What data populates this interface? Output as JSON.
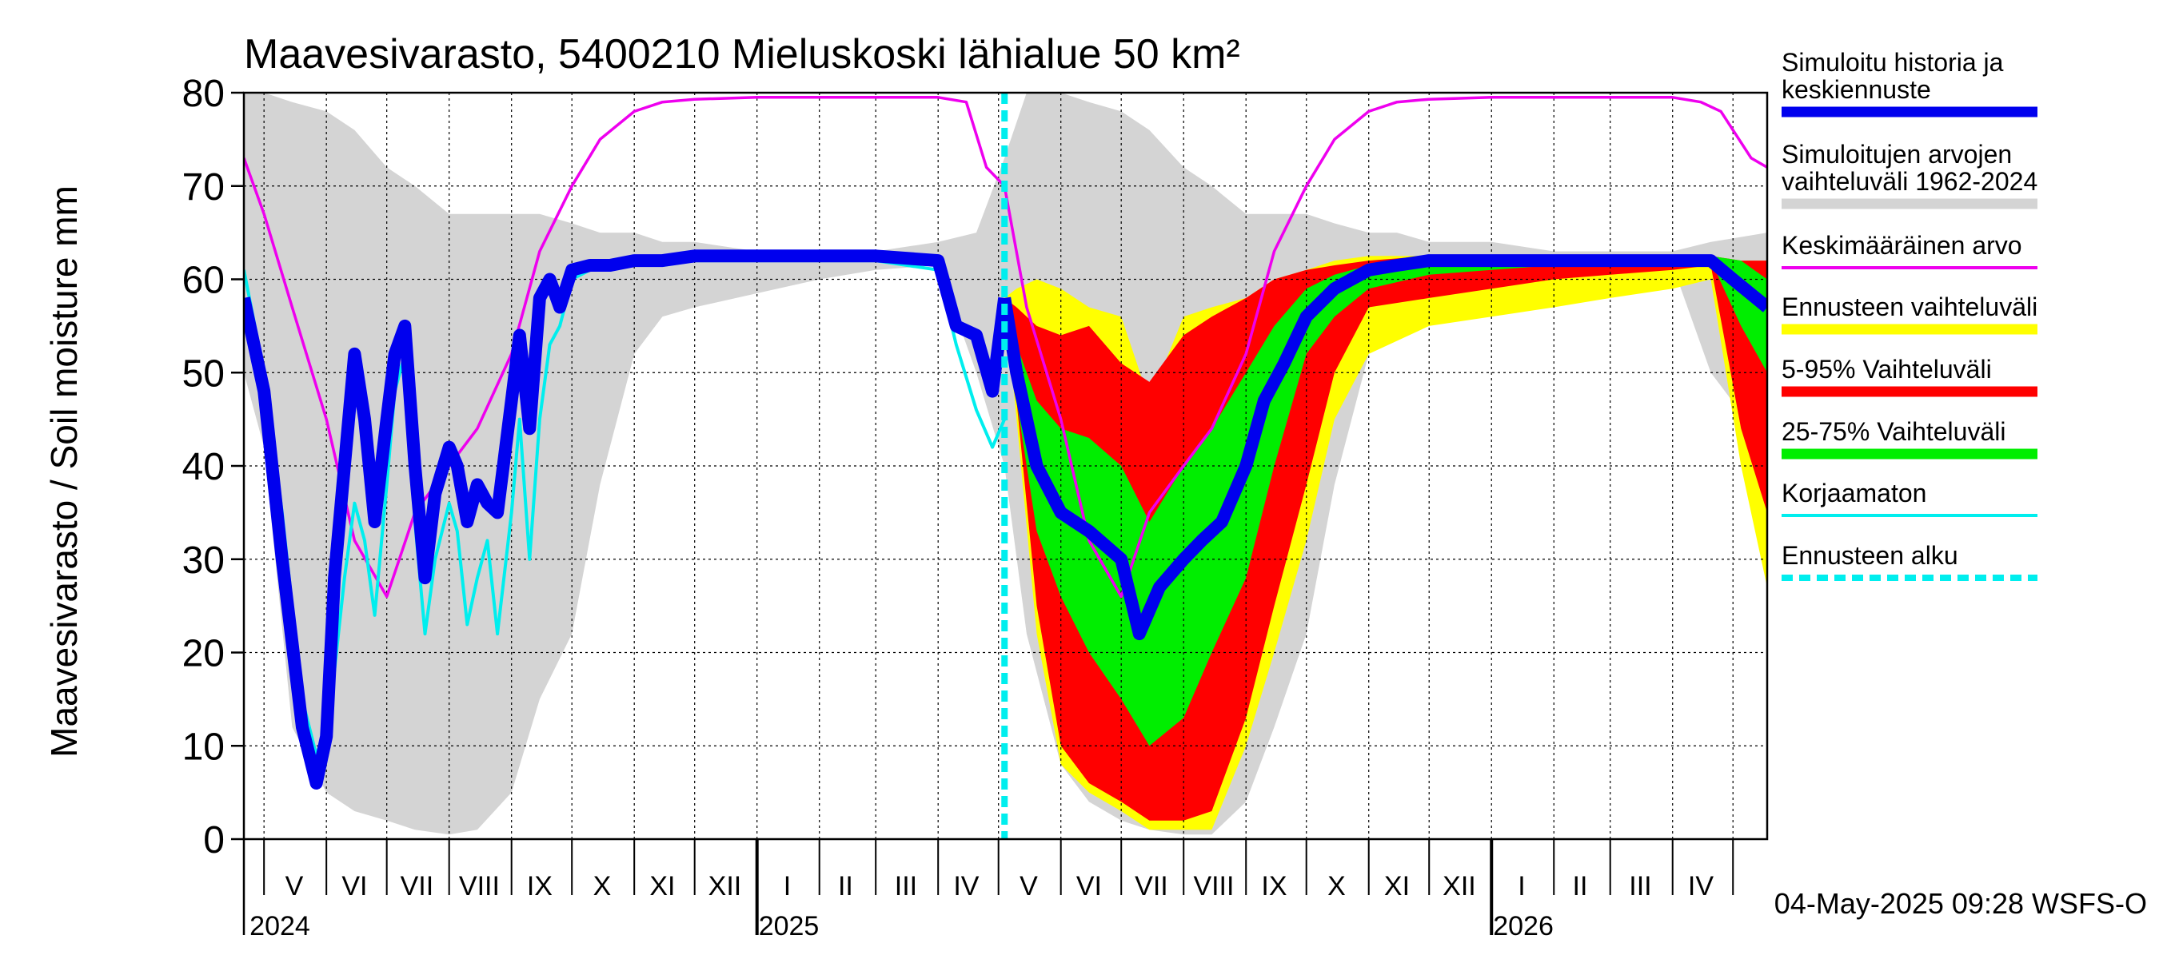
{
  "chart_data": {
    "type": "area",
    "title": "Maavesivarasto, 5400210 Mieluskoski lähialue 50 km²",
    "ylabel": "Maavesivarasto / Soil moisture   mm",
    "xlabel": "",
    "ylim": [
      0,
      80
    ],
    "y_ticks": [
      0,
      10,
      20,
      30,
      40,
      50,
      60,
      70,
      80
    ],
    "x_range": [
      "2024-04-21",
      "2026-05-18"
    ],
    "grid": true,
    "legend_position": "right",
    "month_labels": [
      {
        "label": "V",
        "date": "2024-05-16"
      },
      {
        "label": "VI",
        "date": "2024-06-15"
      },
      {
        "label": "VII",
        "date": "2024-07-16"
      },
      {
        "label": "VIII",
        "date": "2024-08-16"
      },
      {
        "label": "IX",
        "date": "2024-09-15"
      },
      {
        "label": "X",
        "date": "2024-10-16"
      },
      {
        "label": "XI",
        "date": "2024-11-15"
      },
      {
        "label": "XII",
        "date": "2024-12-16"
      },
      {
        "label": "I",
        "date": "2025-01-16"
      },
      {
        "label": "II",
        "date": "2025-02-14"
      },
      {
        "label": "III",
        "date": "2025-03-16"
      },
      {
        "label": "IV",
        "date": "2025-04-15"
      },
      {
        "label": "V",
        "date": "2025-05-16"
      },
      {
        "label": "VI",
        "date": "2025-06-15"
      },
      {
        "label": "VII",
        "date": "2025-07-16"
      },
      {
        "label": "VIII",
        "date": "2025-08-16"
      },
      {
        "label": "IX",
        "date": "2025-09-15"
      },
      {
        "label": "X",
        "date": "2025-10-16"
      },
      {
        "label": "XI",
        "date": "2025-11-15"
      },
      {
        "label": "XII",
        "date": "2025-12-16"
      },
      {
        "label": "I",
        "date": "2026-01-16"
      },
      {
        "label": "II",
        "date": "2026-02-14"
      },
      {
        "label": "III",
        "date": "2026-03-16"
      },
      {
        "label": "IV",
        "date": "2026-04-15"
      }
    ],
    "year_labels": [
      {
        "label": "2024",
        "date": "2024-05-01"
      },
      {
        "label": "2025",
        "date": "2025-01-01"
      },
      {
        "label": "2026",
        "date": "2026-01-01"
      }
    ],
    "forecast_start": "2025-05-04",
    "history_range": {
      "x": [
        "2024-04-21",
        "2024-05-01",
        "2024-05-15",
        "2024-06-01",
        "2024-06-15",
        "2024-07-01",
        "2024-07-15",
        "2024-08-01",
        "2024-08-15",
        "2024-09-01",
        "2024-09-15",
        "2024-10-01",
        "2024-10-15",
        "2024-11-01",
        "2024-11-15",
        "2024-12-01",
        "2025-01-01",
        "2025-02-01",
        "2025-03-01",
        "2025-04-01",
        "2025-04-20",
        "2025-05-04",
        "2025-05-15",
        "2025-06-01",
        "2025-06-15",
        "2025-07-01",
        "2025-07-15",
        "2025-08-01",
        "2025-08-15",
        "2025-09-01",
        "2025-09-15",
        "2025-10-01",
        "2025-10-15",
        "2025-11-01",
        "2025-11-15",
        "2025-12-01",
        "2026-01-01",
        "2026-02-01",
        "2026-03-01",
        "2026-04-01",
        "2026-04-20",
        "2026-05-18"
      ],
      "min": [
        50,
        42,
        12,
        5,
        3,
        2,
        1,
        0.5,
        1,
        5,
        15,
        22,
        38,
        52,
        56,
        57,
        58.5,
        60,
        61,
        61.5,
        50,
        40,
        22,
        8,
        4,
        2,
        1,
        0.5,
        0.5,
        4,
        12,
        22,
        38,
        52,
        56,
        57,
        58.5,
        60,
        61,
        61.5,
        50,
        42
      ],
      "max": [
        80,
        80,
        79,
        78,
        76,
        72,
        70,
        67,
        67,
        67,
        67,
        66,
        65,
        65,
        64,
        64,
        63,
        63,
        63,
        64,
        65,
        73,
        80,
        80,
        79,
        78,
        76,
        72,
        70,
        67,
        67,
        67,
        66,
        65,
        65,
        64,
        64,
        63,
        63,
        63,
        64,
        65
      ]
    },
    "series": [
      {
        "name": "Simuloitu historia ja keskiennuste",
        "role": "history",
        "color": "#0000ee",
        "x": [
          "2024-04-21",
          "2024-05-01",
          "2024-05-10",
          "2024-05-20",
          "2024-05-27",
          "2024-06-01",
          "2024-06-05",
          "2024-06-10",
          "2024-06-15",
          "2024-06-20",
          "2024-06-25",
          "2024-07-01",
          "2024-07-05",
          "2024-07-10",
          "2024-07-15",
          "2024-07-20",
          "2024-07-25",
          "2024-08-01",
          "2024-08-05",
          "2024-08-10",
          "2024-08-15",
          "2024-08-20",
          "2024-08-25",
          "2024-09-01",
          "2024-09-05",
          "2024-09-10",
          "2024-09-15",
          "2024-09-20",
          "2024-09-25",
          "2024-10-01",
          "2024-10-10",
          "2024-10-20",
          "2024-11-01",
          "2024-11-15",
          "2024-12-01",
          "2025-01-01",
          "2025-02-01",
          "2025-03-01",
          "2025-04-01",
          "2025-04-10",
          "2025-04-20",
          "2025-04-28",
          "2025-05-04"
        ],
        "values": [
          58,
          48,
          30,
          12,
          6,
          11,
          28,
          40,
          52,
          45,
          34,
          45,
          52,
          55,
          40,
          28,
          37,
          42,
          40,
          34,
          38,
          36,
          35,
          47,
          54,
          44,
          58,
          60,
          57,
          61,
          61.5,
          61.5,
          62,
          62,
          62.5,
          62.5,
          62.5,
          62.5,
          62,
          55,
          54,
          48,
          58
        ]
      },
      {
        "name": "Simuloitu historia ja keskiennuste",
        "role": "forecast median",
        "color": "#0000ee",
        "x": [
          "2025-05-04",
          "2025-05-10",
          "2025-05-20",
          "2025-06-01",
          "2025-06-15",
          "2025-07-01",
          "2025-07-10",
          "2025-07-20",
          "2025-08-01",
          "2025-08-10",
          "2025-08-20",
          "2025-09-01",
          "2025-09-10",
          "2025-09-20",
          "2025-10-01",
          "2025-10-15",
          "2025-11-01",
          "2025-11-15",
          "2025-12-01",
          "2026-01-01",
          "2026-02-01",
          "2026-03-01",
          "2026-04-01",
          "2026-04-20",
          "2026-05-01",
          "2026-05-18"
        ],
        "values": [
          58,
          50,
          40,
          35,
          33,
          30,
          22,
          27,
          30,
          32,
          34,
          40,
          47,
          51,
          56,
          59,
          61,
          61.5,
          62,
          62,
          62,
          62,
          62,
          62,
          60,
          57
        ]
      },
      {
        "name": "Keskimääräinen arvo",
        "role": "mean",
        "color": "#ee00ee",
        "x": [
          "2024-04-21",
          "2024-05-01",
          "2024-05-15",
          "2024-06-01",
          "2024-06-15",
          "2024-07-01",
          "2024-07-15",
          "2024-08-01",
          "2024-08-15",
          "2024-09-01",
          "2024-09-15",
          "2024-10-01",
          "2024-10-15",
          "2024-11-01",
          "2024-11-15",
          "2024-12-01",
          "2025-01-01",
          "2025-02-01",
          "2025-03-01",
          "2025-04-01",
          "2025-04-15",
          "2025-04-25",
          "2025-05-04",
          "2025-05-15",
          "2025-06-01",
          "2025-06-15",
          "2025-07-01",
          "2025-07-15",
          "2025-08-01",
          "2025-08-15",
          "2025-09-01",
          "2025-09-15",
          "2025-10-01",
          "2025-10-15",
          "2025-11-01",
          "2025-11-15",
          "2025-12-01",
          "2026-01-01",
          "2026-02-01",
          "2026-03-01",
          "2026-04-01",
          "2026-04-15",
          "2026-04-25",
          "2026-05-10",
          "2026-05-18"
        ],
        "values": [
          73,
          67,
          57,
          45,
          32,
          26,
          35,
          40,
          44,
          52,
          63,
          70,
          75,
          78,
          79,
          79.3,
          79.5,
          79.5,
          79.5,
          79.5,
          79,
          72,
          70,
          57,
          45,
          32,
          26,
          35,
          40,
          44,
          52,
          63,
          70,
          75,
          78,
          79,
          79.3,
          79.5,
          79.5,
          79.5,
          79.5,
          79,
          78,
          73,
          72
        ]
      },
      {
        "name": "Korjaamaton",
        "role": "uncorrected",
        "color": "#00eeee",
        "x": [
          "2024-04-21",
          "2024-05-01",
          "2024-05-10",
          "2024-05-20",
          "2024-05-27",
          "2024-06-01",
          "2024-06-05",
          "2024-06-10",
          "2024-06-15",
          "2024-06-20",
          "2024-06-25",
          "2024-07-01",
          "2024-07-05",
          "2024-07-10",
          "2024-07-15",
          "2024-07-20",
          "2024-07-25",
          "2024-08-01",
          "2024-08-05",
          "2024-08-10",
          "2024-08-15",
          "2024-08-20",
          "2024-08-25",
          "2024-09-01",
          "2024-09-05",
          "2024-09-10",
          "2024-09-15",
          "2024-09-20",
          "2024-09-25",
          "2024-10-01",
          "2024-10-10",
          "2024-10-20",
          "2024-11-01",
          "2024-11-15",
          "2024-12-01",
          "2025-01-01",
          "2025-02-01",
          "2025-03-01",
          "2025-04-01",
          "2025-04-10",
          "2025-04-20",
          "2025-04-28",
          "2025-05-04"
        ],
        "values": [
          61,
          50,
          35,
          15,
          9,
          12,
          18,
          28,
          36,
          32,
          24,
          38,
          48,
          52,
          34,
          22,
          30,
          36,
          33,
          23,
          28,
          32,
          22,
          35,
          45,
          30,
          45,
          53,
          55,
          60,
          61,
          61,
          61.5,
          61.5,
          62,
          62,
          62,
          62,
          61,
          53,
          46,
          42,
          45
        ]
      }
    ],
    "forecast_bands": {
      "x": [
        "2025-05-04",
        "2025-05-10",
        "2025-05-20",
        "2025-06-01",
        "2025-06-15",
        "2025-07-01",
        "2025-07-15",
        "2025-08-01",
        "2025-08-15",
        "2025-09-01",
        "2025-09-15",
        "2025-10-01",
        "2025-10-15",
        "2025-11-01",
        "2025-12-01",
        "2026-01-01",
        "2026-02-01",
        "2026-03-01",
        "2026-04-01",
        "2026-04-20",
        "2026-05-05",
        "2026-05-18"
      ],
      "range": {
        "name": "Ennusteen vaihteluväli",
        "color": "#ffff00",
        "min": [
          58,
          45,
          22,
          8,
          5,
          3,
          1,
          1,
          1,
          10,
          20,
          32,
          45,
          52,
          55,
          56,
          57,
          58,
          59,
          60,
          40,
          27
        ],
        "max": [
          58,
          59,
          60,
          59,
          57,
          56,
          47,
          56,
          57,
          58,
          60,
          61,
          62,
          62.5,
          62.5,
          62.5,
          62.5,
          62.5,
          62.5,
          62.5,
          62,
          62
        ]
      },
      "p5_95": {
        "name": "5-95% Vaihteluväli",
        "color": "#ff0000",
        "min": [
          58,
          47,
          25,
          10,
          6,
          4,
          2,
          2,
          3,
          13,
          25,
          38,
          50,
          57,
          58,
          59,
          60,
          60.5,
          61,
          61.5,
          44,
          35
        ],
        "max": [
          58,
          57,
          55,
          54,
          55,
          51,
          49,
          54,
          56,
          58,
          60,
          61,
          61.5,
          62,
          62.5,
          62.5,
          62.5,
          62.5,
          62.5,
          62.5,
          62,
          62
        ]
      },
      "p25_75": {
        "name": "25-75% Vaihteluväli",
        "color": "#00ee00",
        "min": [
          58,
          47,
          33,
          26,
          20,
          15,
          10,
          13,
          20,
          28,
          40,
          52,
          56,
          59,
          60.5,
          61,
          61.5,
          62,
          62,
          62,
          55,
          50
        ],
        "max": [
          58,
          53,
          47,
          44,
          43,
          40,
          34,
          40,
          44,
          50,
          55,
          59,
          60.5,
          61.5,
          62,
          62.5,
          62.5,
          62.5,
          62.5,
          62.5,
          62,
          60
        ]
      }
    },
    "legend": [
      {
        "label": "Simuloitu historia ja keskiennuste",
        "color": "#0000ee",
        "style": "thick"
      },
      {
        "label": "Simuloitujen arvojen vaihteluväli 1962-2024",
        "color": "#d4d4d4",
        "style": "thick"
      },
      {
        "label": "Keskimääräinen arvo",
        "color": "#ee00ee",
        "style": "thin"
      },
      {
        "label": "Ennusteen vaihteluväli",
        "color": "#ffff00",
        "style": "thick"
      },
      {
        "label": "5-95% Vaihteluväli",
        "color": "#ff0000",
        "style": "thick"
      },
      {
        "label": "25-75% Vaihteluväli",
        "color": "#00ee00",
        "style": "thick"
      },
      {
        "label": "Korjaamaton",
        "color": "#00eeee",
        "style": "thin"
      },
      {
        "label": "Ennusteen alku",
        "color": "#00eeee",
        "style": "dashed"
      }
    ],
    "footer": "04-May-2025 09:28 WSFS-O"
  }
}
